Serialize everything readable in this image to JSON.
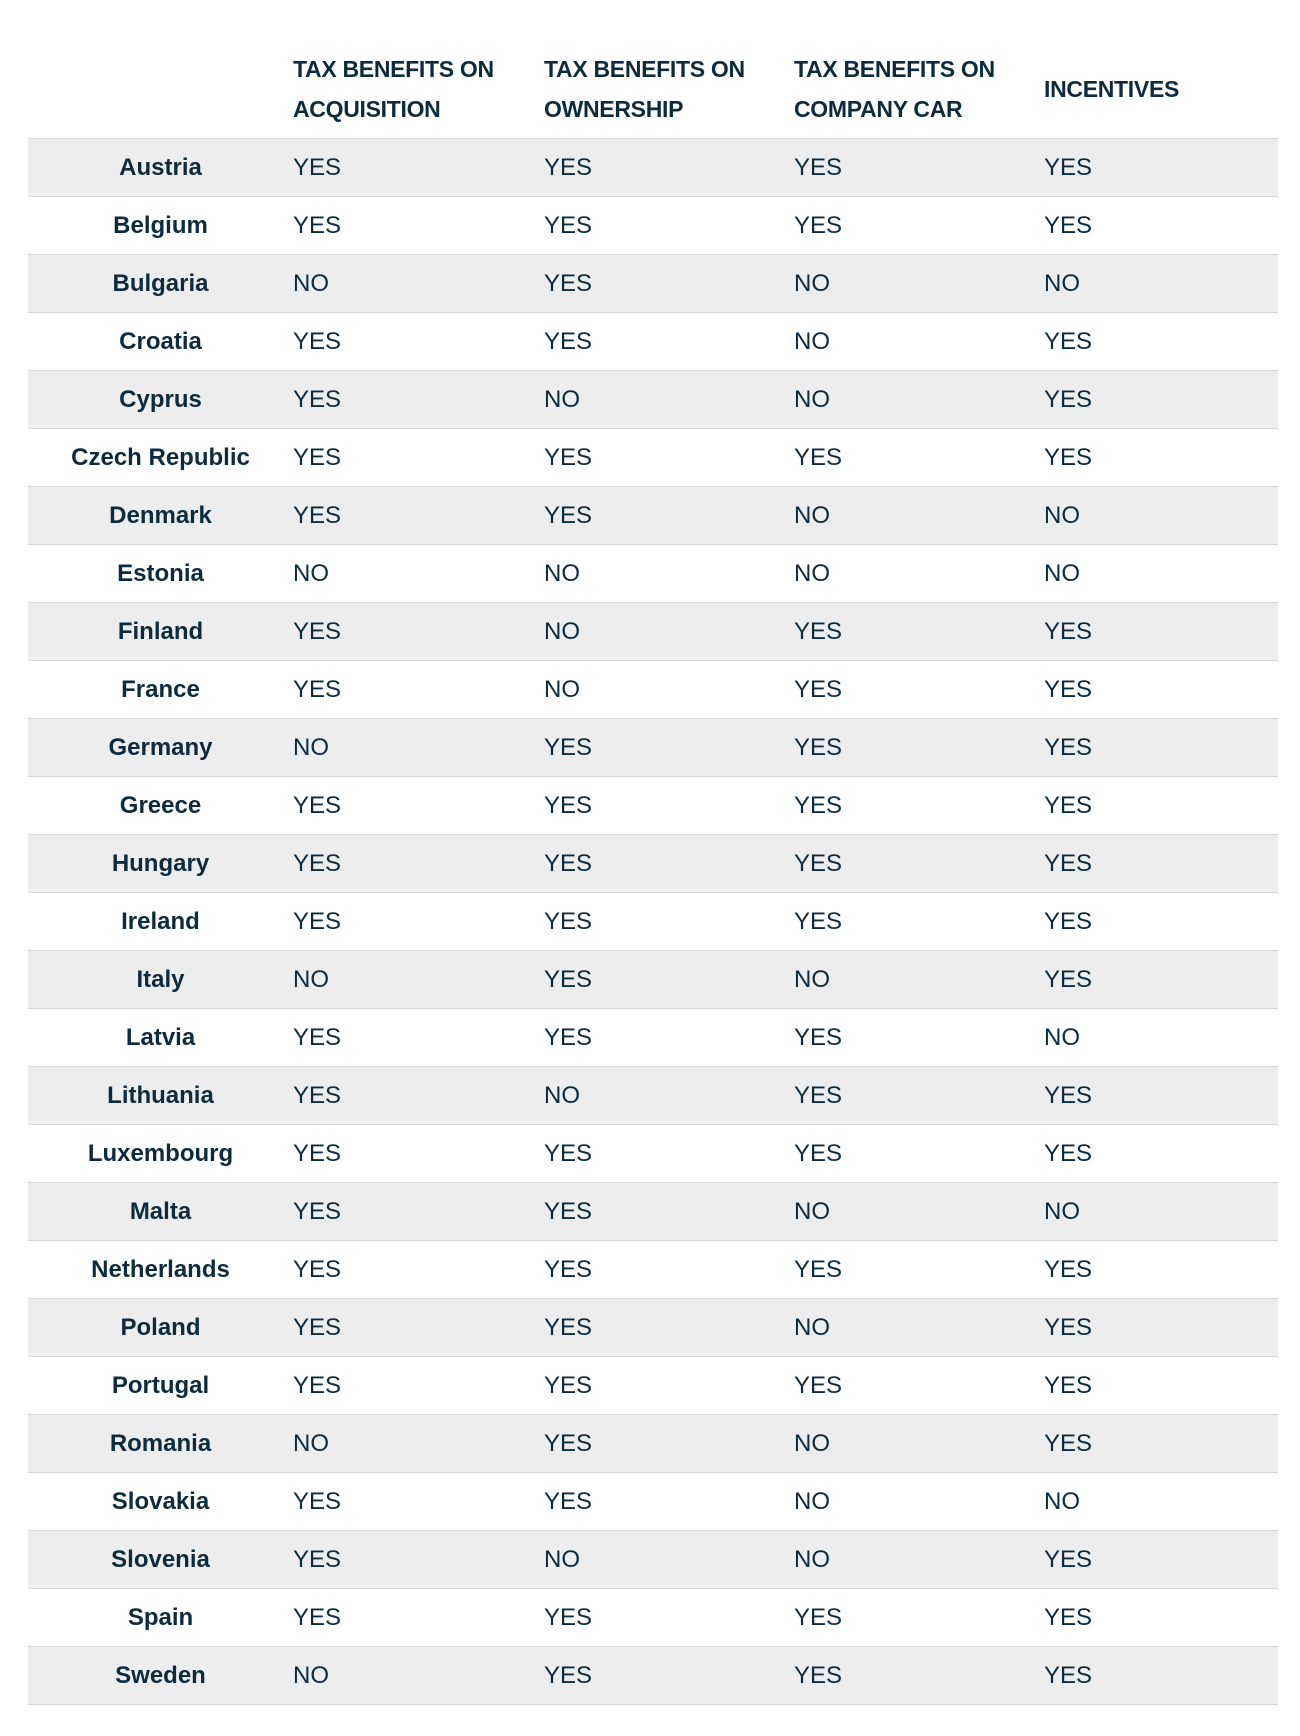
{
  "table": {
    "headers": [
      "TAX BENEFITS ON ACQUISITION",
      "TAX BENEFITS ON OWNERSHIP",
      "TAX BENEFITS ON COMPANY CAR",
      "INCENTIVES"
    ],
    "rows": [
      [
        "Austria",
        "YES",
        "YES",
        "YES",
        "YES"
      ],
      [
        "Belgium",
        "YES",
        "YES",
        "YES",
        "YES"
      ],
      [
        "Bulgaria",
        "NO",
        "YES",
        "NO",
        "NO"
      ],
      [
        "Croatia",
        "YES",
        "YES",
        "NO",
        "YES"
      ],
      [
        "Cyprus",
        "YES",
        "NO",
        "NO",
        "YES"
      ],
      [
        "Czech Republic",
        "YES",
        "YES",
        "YES",
        "YES"
      ],
      [
        "Denmark",
        "YES",
        "YES",
        "NO",
        "NO"
      ],
      [
        "Estonia",
        "NO",
        "NO",
        "NO",
        "NO"
      ],
      [
        "Finland",
        "YES",
        "NO",
        "YES",
        "YES"
      ],
      [
        "France",
        "YES",
        "NO",
        "YES",
        "YES"
      ],
      [
        "Germany",
        "NO",
        "YES",
        "YES",
        "YES"
      ],
      [
        "Greece",
        "YES",
        "YES",
        "YES",
        "YES"
      ],
      [
        "Hungary",
        "YES",
        "YES",
        "YES",
        "YES"
      ],
      [
        "Ireland",
        "YES",
        "YES",
        "YES",
        "YES"
      ],
      [
        "Italy",
        "NO",
        "YES",
        "NO",
        "YES"
      ],
      [
        "Latvia",
        "YES",
        "YES",
        "YES",
        "NO"
      ],
      [
        "Lithuania",
        "YES",
        "NO",
        "YES",
        "YES"
      ],
      [
        "Luxembourg",
        "YES",
        "YES",
        "YES",
        "YES"
      ],
      [
        "Malta",
        "YES",
        "YES",
        "NO",
        "NO"
      ],
      [
        "Netherlands",
        "YES",
        "YES",
        "YES",
        "YES"
      ],
      [
        "Poland",
        "YES",
        "YES",
        "NO",
        "YES"
      ],
      [
        "Portugal",
        "YES",
        "YES",
        "YES",
        "YES"
      ],
      [
        "Romania",
        "NO",
        "YES",
        "NO",
        "YES"
      ],
      [
        "Slovakia",
        "YES",
        "YES",
        "NO",
        "NO"
      ],
      [
        "Slovenia",
        "YES",
        "NO",
        "NO",
        "YES"
      ],
      [
        "Spain",
        "YES",
        "YES",
        "YES",
        "YES"
      ],
      [
        "Sweden",
        "NO",
        "YES",
        "YES",
        "YES"
      ]
    ]
  }
}
